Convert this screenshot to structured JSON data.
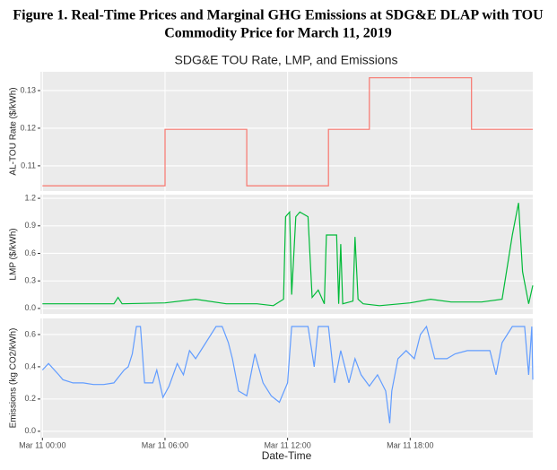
{
  "figure_title": [
    "Figure 1. Real-Time Prices and Marginal GHG Emissions at SDG&E DLAP with TOU",
    "Commodity Price for March 11, 2019"
  ],
  "chart_data": [
    {
      "type": "line",
      "title": "SDG&E TOU Rate, LMP, and Emissions",
      "ylabel": "AL-TOU Rate ($/kWh)",
      "x": [
        0,
        6,
        6,
        10,
        10,
        14,
        14,
        16,
        16,
        21,
        21,
        24
      ],
      "values": [
        0.1047,
        0.1047,
        0.1197,
        0.1197,
        0.1047,
        0.1047,
        0.1197,
        0.1197,
        0.1334,
        0.1334,
        0.1197,
        0.1197
      ],
      "color": "#f8766d",
      "xlim": [
        -0.1,
        24
      ],
      "ylim": [
        0.1033,
        0.135
      ],
      "yticks": [
        0.11,
        0.12,
        0.13
      ],
      "grid": true
    },
    {
      "type": "line",
      "ylabel": "LMP ($/kWh)",
      "x": [
        0,
        3.5,
        3.7,
        3.9,
        6,
        7.5,
        9,
        10.5,
        11.3,
        11.8,
        11.9,
        12.1,
        12.2,
        12.4,
        12.6,
        13,
        13.2,
        13.5,
        13.8,
        13.9,
        14.4,
        14.5,
        14.6,
        14.7,
        15.2,
        15.3,
        15.45,
        15.7,
        16.5,
        18,
        19,
        20,
        21.5,
        22.5,
        23,
        23.3,
        23.5,
        23.8,
        24
      ],
      "values": [
        0.05,
        0.05,
        0.12,
        0.05,
        0.06,
        0.1,
        0.05,
        0.05,
        0.03,
        0.1,
        1.0,
        1.05,
        0.15,
        1.0,
        1.05,
        1.0,
        0.12,
        0.2,
        0.05,
        0.8,
        0.8,
        0.05,
        0.7,
        0.05,
        0.08,
        0.78,
        0.1,
        0.05,
        0.03,
        0.06,
        0.1,
        0.07,
        0.07,
        0.1,
        0.8,
        1.15,
        0.4,
        0.05,
        0.25
      ],
      "color": "#00ba38",
      "xlim": [
        -0.1,
        24
      ],
      "ylim": [
        -0.06,
        1.24
      ],
      "yticks": [
        {
          "value": 0,
          "label": "0.0"
        },
        0.3,
        0.6,
        0.9,
        1.2
      ],
      "grid": true
    },
    {
      "type": "line",
      "ylabel": "Emissions (kg CO2/kWh)",
      "xlabel": "Date-Time",
      "x": [
        0,
        0.3,
        0.8,
        1,
        1.5,
        2,
        2.5,
        3,
        3.5,
        4,
        4.2,
        4.4,
        4.6,
        4.8,
        5,
        5.4,
        5.6,
        5.9,
        6.2,
        6.6,
        6.9,
        7.2,
        7.5,
        8,
        8.5,
        8.8,
        9.1,
        9.3,
        9.6,
        10,
        10.4,
        10.8,
        11.2,
        11.6,
        12,
        12.2,
        13,
        13.3,
        13.5,
        14,
        14.3,
        14.6,
        15,
        15.3,
        15.6,
        16,
        16.4,
        16.8,
        17,
        17.1,
        17.4,
        17.8,
        18.2,
        18.5,
        18.8,
        19.2,
        19.8,
        20.2,
        20.8,
        21.4,
        21.9,
        22.2,
        22.5,
        23,
        23.6,
        23.8,
        23.95,
        24
      ],
      "values": [
        0.38,
        0.42,
        0.35,
        0.32,
        0.3,
        0.3,
        0.29,
        0.29,
        0.3,
        0.38,
        0.4,
        0.48,
        0.65,
        0.65,
        0.3,
        0.3,
        0.38,
        0.21,
        0.28,
        0.42,
        0.35,
        0.5,
        0.45,
        0.55,
        0.65,
        0.65,
        0.55,
        0.45,
        0.25,
        0.22,
        0.48,
        0.3,
        0.22,
        0.18,
        0.3,
        0.65,
        0.65,
        0.4,
        0.65,
        0.65,
        0.3,
        0.5,
        0.3,
        0.45,
        0.35,
        0.28,
        0.35,
        0.25,
        0.05,
        0.25,
        0.45,
        0.5,
        0.45,
        0.6,
        0.65,
        0.45,
        0.45,
        0.48,
        0.5,
        0.5,
        0.5,
        0.35,
        0.55,
        0.65,
        0.65,
        0.35,
        0.65,
        0.32
      ],
      "color": "#619cff",
      "xlim": [
        -0.1,
        24
      ],
      "ylim": [
        -0.04,
        0.7
      ],
      "yticks": [
        {
          "value": 0,
          "label": "0.0"
        },
        0.2,
        0.4,
        0.6
      ],
      "xticks": [
        {
          "value": 0,
          "label": "Mar 11 00:00"
        },
        {
          "value": 6,
          "label": "Mar 11 06:00"
        },
        {
          "value": 12,
          "label": "Mar 11 12:00"
        },
        {
          "value": 18,
          "label": "Mar 11 18:00"
        }
      ],
      "grid": true
    }
  ]
}
